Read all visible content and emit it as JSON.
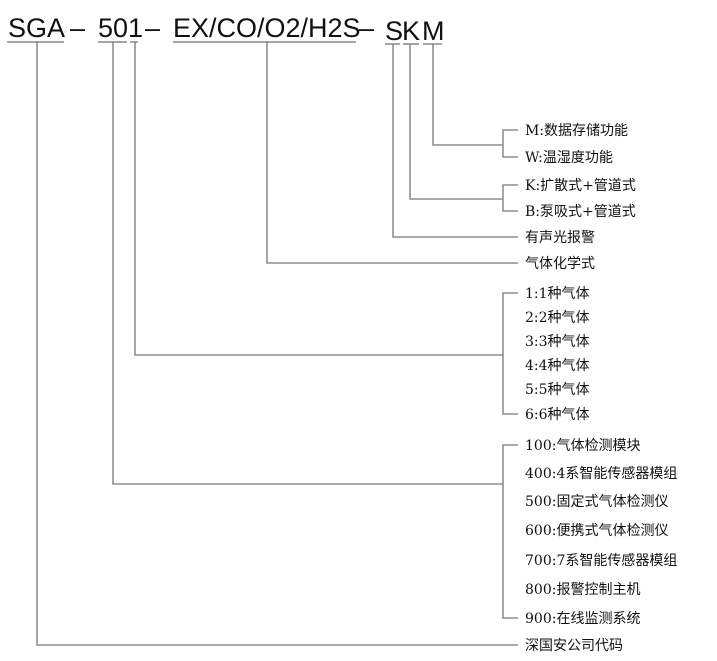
{
  "code": {
    "parts": [
      "SGA",
      "501",
      "EX/CO/O2/H2S",
      "S",
      "K",
      "M"
    ],
    "separator": "–"
  },
  "options": {
    "data_function": [
      "M:数据存储功能",
      "W:温湿度功能"
    ],
    "sampling": [
      "K:扩散式+管道式",
      "B:泵吸式+管道式"
    ],
    "alarm": "有声光报警",
    "gas_formula": "气体化学式",
    "gas_count": [
      "1:1种气体",
      "2:2种气体",
      "3:3种气体",
      "4:4种气体",
      "5:5种气体",
      "6:6种气体"
    ],
    "product_series": [
      "100:气体检测模块",
      "400:4系智能传感器模组",
      "500:固定式气体检测仪",
      "600:便携式气体检测仪",
      "700:7系智能传感器模组",
      "800:报警控制主机",
      "900:在线监测系统"
    ],
    "company_code": "深国安公司代码"
  }
}
